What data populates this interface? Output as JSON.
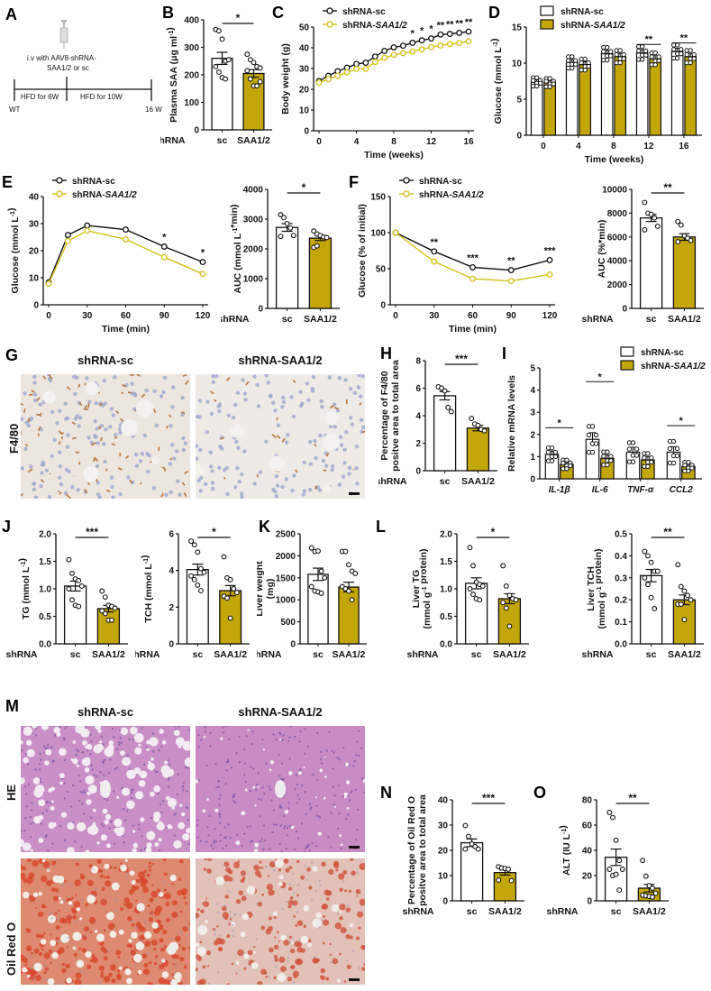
{
  "colors": {
    "sc_fill": "#ffffff",
    "saa_fill": "#c2a60a",
    "saa_line": "#d4c01a",
    "axis": "#111111",
    "text": "#111111"
  },
  "panel_labels": [
    "A",
    "B",
    "C",
    "D",
    "E",
    "F",
    "G",
    "H",
    "I",
    "J",
    "K",
    "L",
    "M",
    "N",
    "O"
  ],
  "panel_a": {
    "label": "A",
    "syringe_icon": "syringe-icon",
    "injection_text_line1": "i.v with AAV8-shRNA-",
    "injection_text_line2": "SAA1/2 or sc",
    "segment1": "HFD for 6W",
    "segment2": "HFD for 10W",
    "start_label": "WT",
    "end_label": "16 W"
  },
  "groups": {
    "sc": "shRNA-sc",
    "saa": "shRNA-SAA1/2",
    "x_prefix": "shRNA",
    "sc_short": "sc",
    "saa_short": "SAA1/2"
  },
  "panel_g": {
    "label": "G",
    "col1": "shRNA-sc",
    "col2": "shRNA-SAA1/2",
    "row": "F4/80"
  },
  "panel_m": {
    "label": "M",
    "col1": "shRNA-sc",
    "col2": "shRNA-SAA1/2",
    "row1": "HE",
    "row2": "Oil Red O"
  },
  "chart_data": [
    {
      "id": "B",
      "type": "bar",
      "title": "",
      "ylabel": "Plasma SAA (μg ml⁻¹)",
      "xlabel": "shRNA",
      "categories": [
        "sc",
        "SAA1/2"
      ],
      "values": [
        260,
        205
      ],
      "sem": [
        22,
        14
      ],
      "ylim": [
        0,
        400
      ],
      "yticks": [
        0,
        100,
        200,
        300,
        400
      ],
      "significance": "*",
      "points": [
        [
          365,
          360,
          330,
          250,
          255,
          230,
          210,
          190,
          185
        ],
        [
          275,
          255,
          245,
          230,
          225,
          215,
          185,
          160,
          160,
          175
        ]
      ]
    },
    {
      "id": "C",
      "type": "line",
      "xlabel": "Time (weeks)",
      "ylabel": "Body weight (g)",
      "xlim": [
        0,
        16
      ],
      "ylim": [
        0,
        50
      ],
      "xticks": [
        0,
        4,
        8,
        12,
        16
      ],
      "yticks": [
        0,
        10,
        20,
        30,
        40,
        50
      ],
      "legend": [
        "shRNA-sc",
        "shRNA-SAA1/2"
      ],
      "x": [
        0,
        1,
        2,
        3,
        4,
        5,
        6,
        7,
        8,
        9,
        10,
        11,
        12,
        13,
        14,
        15,
        16
      ],
      "series": [
        {
          "name": "shRNA-sc",
          "values": [
            24,
            26.5,
            28.7,
            30.4,
            32.2,
            32.8,
            35.8,
            38.5,
            40.2,
            41,
            42.4,
            43.6,
            44.5,
            46.4,
            46.7,
            47.2,
            47.8
          ]
        },
        {
          "name": "shRNA-SAA1/2",
          "values": [
            23.2,
            24.9,
            26.5,
            28.2,
            29.8,
            29.8,
            33.2,
            35.2,
            36.6,
            37.4,
            38.2,
            39.2,
            40.3,
            41.1,
            41.8,
            42.3,
            43.1
          ]
        }
      ],
      "annotations": [
        {
          "x": 10,
          "text": "*"
        },
        {
          "x": 11,
          "text": "*"
        },
        {
          "x": 12,
          "text": "*"
        },
        {
          "x": 13,
          "text": "**"
        },
        {
          "x": 14,
          "text": "**"
        },
        {
          "x": 15,
          "text": "**"
        },
        {
          "x": 16,
          "text": "**"
        }
      ]
    },
    {
      "id": "D",
      "type": "bar",
      "xlabel": "Time (weeks)",
      "ylabel": "Glucose (mmol L⁻¹)",
      "categories": [
        "0",
        "4",
        "8",
        "12",
        "16"
      ],
      "ylim": [
        0,
        15
      ],
      "yticks": [
        0,
        5,
        10,
        15
      ],
      "legend": [
        "shRNA-sc",
        "shRNA-SAA1/2"
      ],
      "series": [
        {
          "name": "shRNA-sc",
          "values": [
            7.4,
            10.1,
            11.3,
            11.4,
            11.6
          ]
        },
        {
          "name": "shRNA-SAA1/2",
          "values": [
            7.3,
            9.8,
            10.9,
            10.6,
            10.9
          ]
        }
      ],
      "annotations": [
        {
          "category": "12",
          "text": "**"
        },
        {
          "category": "16",
          "text": "**"
        }
      ]
    },
    {
      "id": "E",
      "type": "line",
      "xlabel": "Time (min)",
      "ylabel": "Glucose (mmol L⁻¹)",
      "x": [
        0,
        15,
        30,
        60,
        90,
        120
      ],
      "xticks": [
        0,
        30,
        60,
        90,
        120
      ],
      "ylim": [
        0,
        40
      ],
      "yticks": [
        0,
        10,
        20,
        30,
        40
      ],
      "legend": [
        "shRNA-sc",
        "shRNA-SAA1/2"
      ],
      "series": [
        {
          "name": "shRNA-sc",
          "values": [
            8.3,
            25.8,
            29.3,
            27.8,
            21.5,
            15.8
          ]
        },
        {
          "name": "shRNA-SAA1/2",
          "values": [
            7.8,
            23.6,
            27.4,
            24.2,
            17.6,
            11.4
          ]
        }
      ],
      "annotations": [
        {
          "x": 90,
          "text": "*"
        },
        {
          "x": 120,
          "text": "*"
        }
      ]
    },
    {
      "id": "E_AUC",
      "type": "bar",
      "ylabel": "AUC (mmol L⁻¹*min)",
      "xlabel": "shRNA",
      "categories": [
        "sc",
        "SAA1/2"
      ],
      "values": [
        2720,
        2360
      ],
      "sem": [
        130,
        80
      ],
      "ylim": [
        0,
        4000
      ],
      "yticks": [
        0,
        1000,
        2000,
        3000,
        4000
      ],
      "significance": "*",
      "points": [
        [
          3150,
          3050,
          2850,
          2700,
          2450,
          2420
        ],
        [
          2600,
          2500,
          2450,
          2400,
          2380,
          2050,
          2100
        ]
      ]
    },
    {
      "id": "F",
      "type": "line",
      "xlabel": "Time (min)",
      "ylabel": "Glucose (% of initial)",
      "x": [
        0,
        30,
        60,
        90,
        120
      ],
      "xticks": [
        0,
        30,
        60,
        90,
        120
      ],
      "ylim": [
        0,
        150
      ],
      "yticks": [
        0,
        50,
        100,
        150
      ],
      "legend": [
        "shRNA-sc",
        "shRNA-SAA1/2"
      ],
      "series": [
        {
          "name": "shRNA-sc",
          "values": [
            100,
            74,
            52,
            48,
            62
          ]
        },
        {
          "name": "shRNA-SAA1/2",
          "values": [
            100,
            60,
            36,
            33,
            42
          ]
        }
      ],
      "annotations": [
        {
          "x": 30,
          "text": "**"
        },
        {
          "x": 60,
          "text": "***"
        },
        {
          "x": 90,
          "text": "**"
        },
        {
          "x": 120,
          "text": "***"
        }
      ]
    },
    {
      "id": "F_AUC",
      "type": "bar",
      "ylabel": "AUC (%*min)",
      "xlabel": "shRNA",
      "categories": [
        "sc",
        "SAA1/2"
      ],
      "values": [
        7600,
        6000
      ],
      "sem": [
        300,
        280
      ],
      "ylim": [
        0,
        10000
      ],
      "yticks": [
        0,
        2000,
        4000,
        6000,
        8000,
        10000
      ],
      "significance": "**",
      "points": [
        [
          8900,
          8000,
          7900,
          7600,
          6900,
          6600
        ],
        [
          7300,
          7000,
          6100,
          5900,
          5700,
          5600
        ]
      ]
    },
    {
      "id": "H",
      "type": "bar",
      "ylabel": "Percentage of F4/80 positve area to total area",
      "xlabel": "shRNA",
      "categories": [
        "sc",
        "SAA1/2"
      ],
      "values": [
        5.45,
        3.1
      ],
      "sem": [
        0.3,
        0.2
      ],
      "ylim": [
        0,
        8
      ],
      "yticks": [
        0,
        2,
        4,
        6,
        8
      ],
      "significance": "***",
      "points": [
        [
          6.1,
          6.0,
          5.8,
          4.6,
          4.3
        ],
        [
          3.8,
          3.4,
          3.3,
          3.0,
          2.9
        ]
      ]
    },
    {
      "id": "I",
      "type": "bar",
      "ylabel": "Relative mRNA levels",
      "categories": [
        "IL-1β",
        "IL-6",
        "TNF-α",
        "CCL2"
      ],
      "ylim": [
        0,
        5
      ],
      "yticks": [
        0,
        1,
        2,
        3,
        4,
        5
      ],
      "legend": [
        "shRNA-sc",
        "shRNA-SAA1/2"
      ],
      "series": [
        {
          "name": "shRNA-sc",
          "values": [
            1.1,
            1.78,
            1.2,
            1.2
          ],
          "sem": [
            0.15,
            0.3,
            0.22,
            0.25
          ]
        },
        {
          "name": "shRNA-SAA1/2",
          "values": [
            0.65,
            0.92,
            0.85,
            0.55
          ],
          "sem": [
            0.1,
            0.15,
            0.15,
            0.1
          ]
        }
      ],
      "annotations": [
        {
          "category": "IL-1β",
          "text": "*"
        },
        {
          "category": "IL-6",
          "text": "*"
        },
        {
          "category": "CCL2",
          "text": "*"
        }
      ]
    },
    {
      "id": "J_TG",
      "type": "bar",
      "ylabel": "TG (mmol L⁻¹)",
      "xlabel": "shRNA",
      "categories": [
        "sc",
        "SAA1/2"
      ],
      "values": [
        1.05,
        0.64
      ],
      "sem": [
        0.09,
        0.06
      ],
      "ylim": [
        0,
        2.0
      ],
      "yticks": [
        "0.0",
        "0.5",
        "1.0",
        "1.5",
        "2.0"
      ],
      "significance": "***",
      "points": [
        [
          1.53,
          1.28,
          1.18,
          1.15,
          1.05,
          1.0,
          0.8,
          0.7,
          0.68
        ],
        [
          0.96,
          0.85,
          0.7,
          0.68,
          0.65,
          0.6,
          0.55,
          0.43,
          0.43
        ]
      ]
    },
    {
      "id": "J_TCH",
      "type": "bar",
      "ylabel": "TCH (mmol L⁻¹)",
      "xlabel": "shRNA",
      "categories": [
        "sc",
        "SAA1/2"
      ],
      "values": [
        4.05,
        2.9
      ],
      "sem": [
        0.3,
        0.28
      ],
      "ylim": [
        0,
        6
      ],
      "yticks": [
        0,
        2,
        4,
        6
      ],
      "significance": "*",
      "points": [
        [
          5.6,
          5.4,
          5.0,
          4.1,
          3.9,
          3.7,
          3.5,
          3.2,
          2.9
        ],
        [
          4.75,
          3.6,
          3.5,
          3.0,
          2.8,
          2.6,
          2.5,
          1.4
        ]
      ]
    },
    {
      "id": "K",
      "type": "bar",
      "ylabel": "Liver weight (mg)",
      "xlabel": "shRNA",
      "categories": [
        "sc",
        "SAA1/2"
      ],
      "values": [
        1580,
        1290
      ],
      "sem": [
        140,
        110
      ],
      "ylim": [
        0,
        2500
      ],
      "yticks": [
        0,
        500,
        1000,
        1500,
        2000,
        2500
      ],
      "points": [
        [
          2180,
          2100,
          2110,
          1650,
          1500,
          1300,
          1200,
          1180,
          1150
        ],
        [
          2100,
          2100,
          1800,
          1650,
          1600,
          1300,
          1250,
          1200,
          1000
        ]
      ]
    },
    {
      "id": "L_TG",
      "type": "bar",
      "ylabel": "Liver TG (mmol g⁻¹ protein)",
      "xlabel": "shRNA",
      "categories": [
        "sc",
        "SAA1/2"
      ],
      "values": [
        1.1,
        0.82
      ],
      "sem": [
        0.1,
        0.09
      ],
      "ylim": [
        0,
        2.0
      ],
      "yticks": [
        "0.0",
        "0.5",
        "1.0",
        "1.5",
        "2.0"
      ],
      "significance": "*",
      "points": [
        [
          1.75,
          1.42,
          1.12,
          1.08,
          1.05,
          1.0,
          0.9,
          0.82,
          0.8
        ],
        [
          1.42,
          1.05,
          0.88,
          0.82,
          0.8,
          0.75,
          0.65,
          0.32
        ]
      ]
    },
    {
      "id": "L_TCH",
      "type": "bar",
      "ylabel": "Liver TCH (mmol g⁻¹ protein)",
      "xlabel": "shRNA",
      "categories": [
        "sc",
        "SAA1/2"
      ],
      "values": [
        0.31,
        0.2
      ],
      "sem": [
        0.028,
        0.022
      ],
      "ylim": [
        0,
        0.5
      ],
      "yticks": [
        "0.0",
        "0.1",
        "0.2",
        "0.3",
        "0.4",
        "0.5"
      ],
      "significance": "**",
      "points": [
        [
          0.42,
          0.4,
          0.37,
          0.33,
          0.33,
          0.3,
          0.27,
          0.21,
          0.16
        ],
        [
          0.36,
          0.26,
          0.24,
          0.22,
          0.2,
          0.18,
          0.18,
          0.11
        ]
      ]
    },
    {
      "id": "N",
      "type": "bar",
      "ylabel": "Percentage of Oil Red O positve area to total area",
      "xlabel": "shRNA",
      "categories": [
        "sc",
        "SAA1/2"
      ],
      "values": [
        23,
        11.2
      ],
      "sem": [
        1.5,
        1.0
      ],
      "ylim": [
        0,
        40
      ],
      "yticks": [
        0,
        10,
        20,
        30,
        40
      ],
      "significance": "***",
      "points": [
        [
          29.8,
          25.5,
          22.5,
          21.5,
          20.5,
          20.5
        ],
        [
          13.5,
          13,
          12.8,
          12.5,
          8,
          8.2
        ]
      ]
    },
    {
      "id": "O",
      "type": "bar",
      "ylabel": "ALT (IU L⁻¹)",
      "xlabel": "shRNA",
      "categories": [
        "sc",
        "SAA1/2"
      ],
      "values": [
        34.5,
        10
      ],
      "sem": [
        6.5,
        3
      ],
      "ylim": [
        0,
        80
      ],
      "yticks": [
        0,
        20,
        40,
        60,
        80
      ],
      "significance": "**",
      "points": [
        [
          70,
          66,
          48,
          32,
          25,
          25,
          20,
          21,
          8.5
        ],
        [
          32,
          19.5,
          12,
          10,
          6,
          4.5,
          4,
          3.5,
          3
        ]
      ]
    }
  ]
}
